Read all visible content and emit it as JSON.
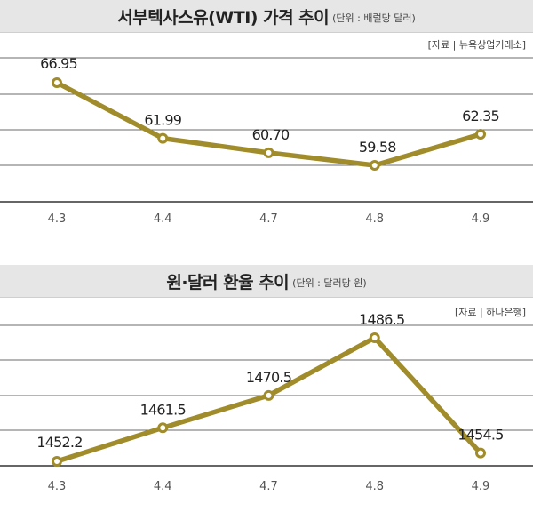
{
  "chart_data": [
    {
      "type": "line",
      "title": "서부텍사스유(WTI) 가격 추이",
      "unit": "(단위 : 배럴당 달러)",
      "source": "[자료 | 뉴욕상업거래소]",
      "categories": [
        "4.3",
        "4.4",
        "4.7",
        "4.8",
        "4.9"
      ],
      "values": [
        66.95,
        61.99,
        60.7,
        59.58,
        62.35
      ],
      "labels": [
        "66.95",
        "61.99",
        "60.70",
        "59.58",
        "62.35"
      ],
      "color": "#a08c2a",
      "grid": true
    },
    {
      "type": "line",
      "title": "원·달러 환율 추이",
      "unit": "(단위 : 달러당 원)",
      "source": "[자료 | 하나은행]",
      "categories": [
        "4.3",
        "4.4",
        "4.7",
        "4.8",
        "4.9"
      ],
      "values": [
        1452.2,
        1461.5,
        1470.5,
        1486.5,
        1454.5
      ],
      "labels": [
        "1452.2",
        "1461.5",
        "1470.5",
        "1486.5",
        "1454.5"
      ],
      "color": "#a08c2a",
      "grid": true
    }
  ]
}
